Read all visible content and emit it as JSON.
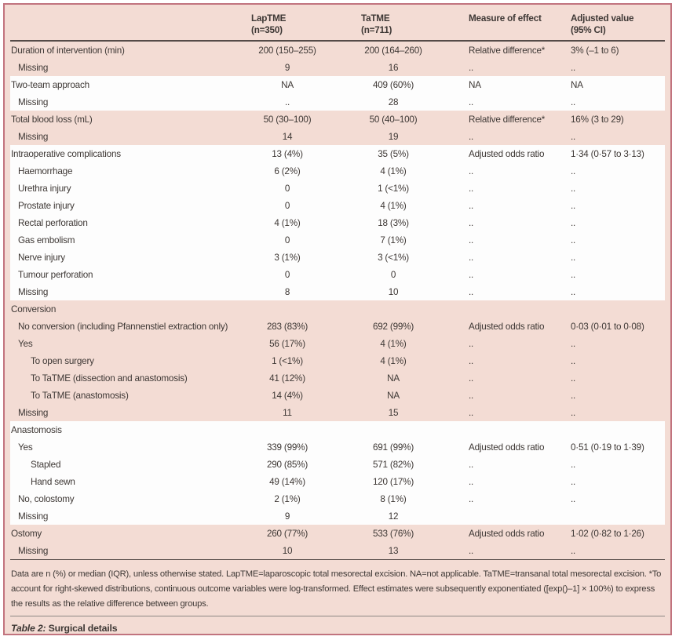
{
  "colors": {
    "table_background": "#f3dcd4",
    "band_white": "#fdfdfd",
    "border": "#c1737e",
    "rule_dark": "#554b48",
    "text": "#3e3835"
  },
  "table": {
    "columns": [
      {
        "header": "",
        "subheader": ""
      },
      {
        "header": "LapTME",
        "subheader": "(n=350)"
      },
      {
        "header": "TaTME",
        "subheader": "(n=711)"
      },
      {
        "header": "Measure of effect",
        "subheader": ""
      },
      {
        "header": "Adjusted value",
        "subheader": "(95% CI)"
      }
    ],
    "sections": [
      {
        "shade": "pink",
        "rows": [
          {
            "label": "Duration of intervention (min)",
            "indent": 0,
            "laptme": "200 (150–255)",
            "tatme": "200 (164–260)",
            "measure": "Relative difference*",
            "adjusted": "3% (–1 to 6)"
          },
          {
            "label": "Missing",
            "indent": 1,
            "laptme": "9",
            "tatme": "16",
            "measure": "..",
            "adjusted": ".."
          }
        ]
      },
      {
        "shade": "white",
        "rows": [
          {
            "label": "Two-team approach",
            "indent": 0,
            "laptme": "NA",
            "tatme": "409 (60%)",
            "measure": "NA",
            "adjusted": "NA"
          },
          {
            "label": "Missing",
            "indent": 1,
            "laptme": "..",
            "tatme": "28",
            "measure": "..",
            "adjusted": ".."
          }
        ]
      },
      {
        "shade": "pink",
        "rows": [
          {
            "label": "Total blood loss (mL)",
            "indent": 0,
            "laptme": "50 (30–100)",
            "tatme": "50 (40–100)",
            "measure": "Relative difference*",
            "adjusted": "16% (3 to 29)"
          },
          {
            "label": "Missing",
            "indent": 1,
            "laptme": "14",
            "tatme": "19",
            "measure": "..",
            "adjusted": ".."
          }
        ]
      },
      {
        "shade": "white",
        "rows": [
          {
            "label": "Intraoperative complications",
            "indent": 0,
            "laptme": "13 (4%)",
            "tatme": "35 (5%)",
            "measure": "Adjusted odds ratio",
            "adjusted": "1·34 (0·57 to 3·13)"
          },
          {
            "label": "Haemorrhage",
            "indent": 1,
            "laptme": "6 (2%)",
            "tatme": "4 (1%)",
            "measure": "..",
            "adjusted": ".."
          },
          {
            "label": "Urethra injury",
            "indent": 1,
            "laptme": "0",
            "tatme": "1 (<1%)",
            "measure": "..",
            "adjusted": ".."
          },
          {
            "label": "Prostate injury",
            "indent": 1,
            "laptme": "0",
            "tatme": "4 (1%)",
            "measure": "..",
            "adjusted": ".."
          },
          {
            "label": "Rectal perforation",
            "indent": 1,
            "laptme": "4 (1%)",
            "tatme": "18 (3%)",
            "measure": "..",
            "adjusted": ".."
          },
          {
            "label": "Gas embolism",
            "indent": 1,
            "laptme": "0",
            "tatme": "7 (1%)",
            "measure": "..",
            "adjusted": ".."
          },
          {
            "label": "Nerve injury",
            "indent": 1,
            "laptme": "3 (1%)",
            "tatme": "3 (<1%)",
            "measure": "..",
            "adjusted": ".."
          },
          {
            "label": "Tumour perforation",
            "indent": 1,
            "laptme": "0",
            "tatme": "0",
            "measure": "..",
            "adjusted": ".."
          },
          {
            "label": "Missing",
            "indent": 1,
            "laptme": "8",
            "tatme": "10",
            "measure": "..",
            "adjusted": ".."
          }
        ]
      },
      {
        "shade": "pink",
        "rows": [
          {
            "label": "Conversion",
            "indent": 0,
            "laptme": "",
            "tatme": "",
            "measure": "",
            "adjusted": ""
          },
          {
            "label": "No conversion (including Pfannenstiel extraction only)",
            "indent": 1,
            "laptme": "283 (83%)",
            "tatme": "692 (99%)",
            "measure": "Adjusted odds ratio",
            "adjusted": "0·03 (0·01 to 0·08)"
          },
          {
            "label": "Yes",
            "indent": 1,
            "laptme": "56 (17%)",
            "tatme": "4 (1%)",
            "measure": "..",
            "adjusted": ".."
          },
          {
            "label": "To open surgery",
            "indent": 2,
            "laptme": "1 (<1%)",
            "tatme": "4 (1%)",
            "measure": "..",
            "adjusted": ".."
          },
          {
            "label": "To TaTME (dissection and anastomosis)",
            "indent": 2,
            "laptme": "41 (12%)",
            "tatme": "NA",
            "measure": "..",
            "adjusted": ".."
          },
          {
            "label": "To TaTME (anastomosis)",
            "indent": 2,
            "laptme": "14 (4%)",
            "tatme": "NA",
            "measure": "..",
            "adjusted": ".."
          },
          {
            "label": "Missing",
            "indent": 1,
            "laptme": "11",
            "tatme": "15",
            "measure": "..",
            "adjusted": ".."
          }
        ]
      },
      {
        "shade": "white",
        "rows": [
          {
            "label": "Anastomosis",
            "indent": 0,
            "laptme": "",
            "tatme": "",
            "measure": "",
            "adjusted": ""
          },
          {
            "label": "Yes",
            "indent": 1,
            "laptme": "339 (99%)",
            "tatme": "691 (99%)",
            "measure": "Adjusted odds ratio",
            "adjusted": "0·51 (0·19 to 1·39)"
          },
          {
            "label": "Stapled",
            "indent": 2,
            "laptme": "290 (85%)",
            "tatme": "571 (82%)",
            "measure": "..",
            "adjusted": ".."
          },
          {
            "label": "Hand sewn",
            "indent": 2,
            "laptme": "49 (14%)",
            "tatme": "120 (17%)",
            "measure": "..",
            "adjusted": ".."
          },
          {
            "label": "No, colostomy",
            "indent": 1,
            "laptme": "2 (1%)",
            "tatme": "8 (1%)",
            "measure": "..",
            "adjusted": ".."
          },
          {
            "label": "Missing",
            "indent": 1,
            "laptme": "9",
            "tatme": "12",
            "measure": "",
            "adjusted": ""
          }
        ]
      },
      {
        "shade": "pink",
        "rows": [
          {
            "label": "Ostomy",
            "indent": 0,
            "laptme": "260 (77%)",
            "tatme": "533 (76%)",
            "measure": "Adjusted odds ratio",
            "adjusted": "1·02 (0·82 to 1·26)"
          },
          {
            "label": "Missing",
            "indent": 1,
            "laptme": "10",
            "tatme": "13",
            "measure": "..",
            "adjusted": ".."
          }
        ]
      }
    ],
    "footnotes": [
      "Data are n (%) or median (IQR), unless otherwise stated. LapTME=laparoscopic total mesorectal excision. NA=not applicable. TaTME=transanal total mesorectal excision.",
      "*To account for right-skewed distributions, continuous outcome variables were log-transformed. Effect estimates were subsequently exponentiated ([exp()–1] × 100%) to express the results as the relative difference between groups."
    ],
    "caption_label": "Table 2:",
    "caption_title": " Surgical details"
  }
}
